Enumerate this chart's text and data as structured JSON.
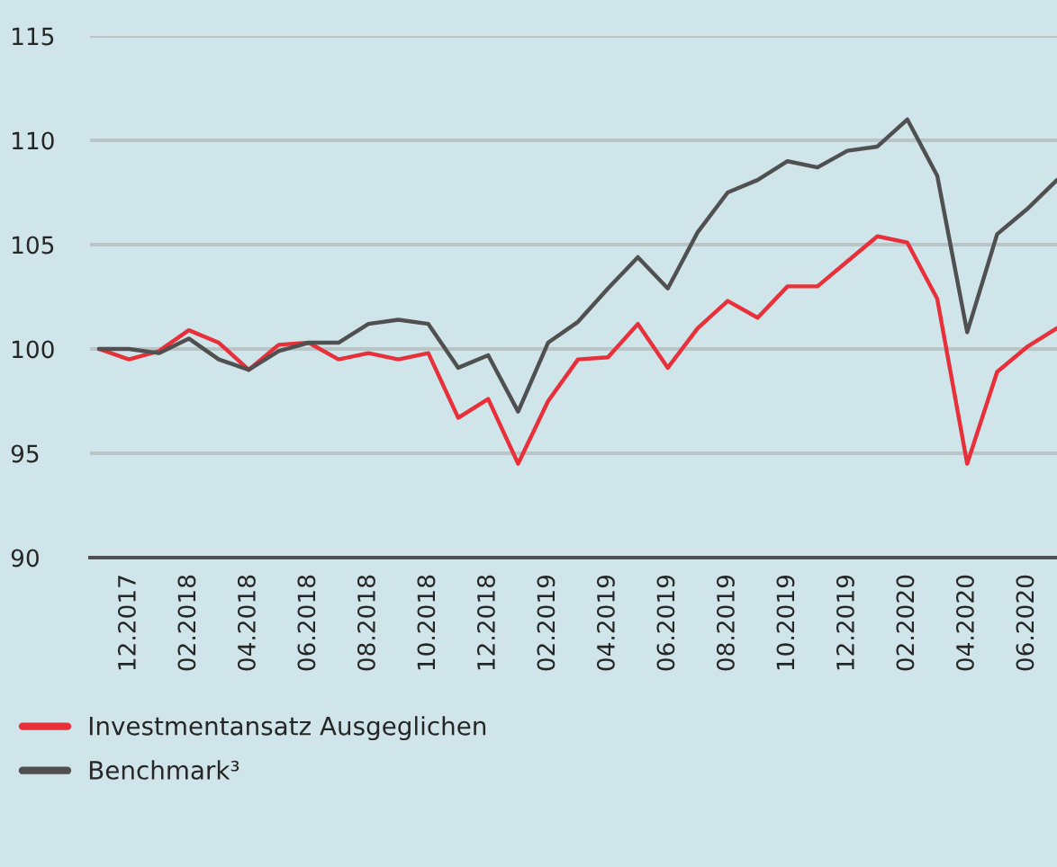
{
  "chart_data": {
    "type": "line",
    "categories": [
      null,
      "12.2017",
      null,
      "02.2018",
      null,
      "04.2018",
      null,
      "06.2018",
      null,
      "08.2018",
      null,
      "10.2018",
      null,
      "12.2018",
      null,
      "02.2019",
      null,
      "04.2019",
      null,
      "06.2019",
      null,
      "08.2019",
      null,
      "10.2019",
      null,
      "12.2019",
      null,
      "02.2020",
      null,
      "04.2020",
      null,
      "06.2020",
      null
    ],
    "series": [
      {
        "name": "Investmentansatz Ausgeglichen",
        "color": "#e8303a",
        "values": [
          100.0,
          99.5,
          99.9,
          100.9,
          100.3,
          99.0,
          100.2,
          100.3,
          99.5,
          99.8,
          99.5,
          99.8,
          96.7,
          97.6,
          94.5,
          97.5,
          99.5,
          99.6,
          101.2,
          99.1,
          101.0,
          102.3,
          101.5,
          103.0,
          103.0,
          104.2,
          105.4,
          105.1,
          102.4,
          94.5,
          98.9,
          100.1,
          101.0
        ]
      },
      {
        "name": "Benchmark³",
        "color": "#505050",
        "values": [
          100.0,
          100.0,
          99.8,
          100.5,
          99.5,
          99.0,
          99.9,
          100.3,
          100.3,
          101.2,
          101.4,
          101.2,
          99.1,
          99.7,
          97.0,
          100.3,
          101.3,
          102.9,
          104.4,
          102.9,
          105.6,
          107.5,
          108.1,
          109.0,
          108.7,
          109.5,
          109.7,
          111.0,
          108.3,
          100.8,
          105.5,
          106.7,
          108.1
        ]
      }
    ],
    "ylim": [
      90,
      115
    ],
    "yticks": [
      90,
      95,
      100,
      105,
      110,
      115
    ],
    "grid": "y",
    "legend": "bottom",
    "marker": "none",
    "line_style": "solid"
  }
}
